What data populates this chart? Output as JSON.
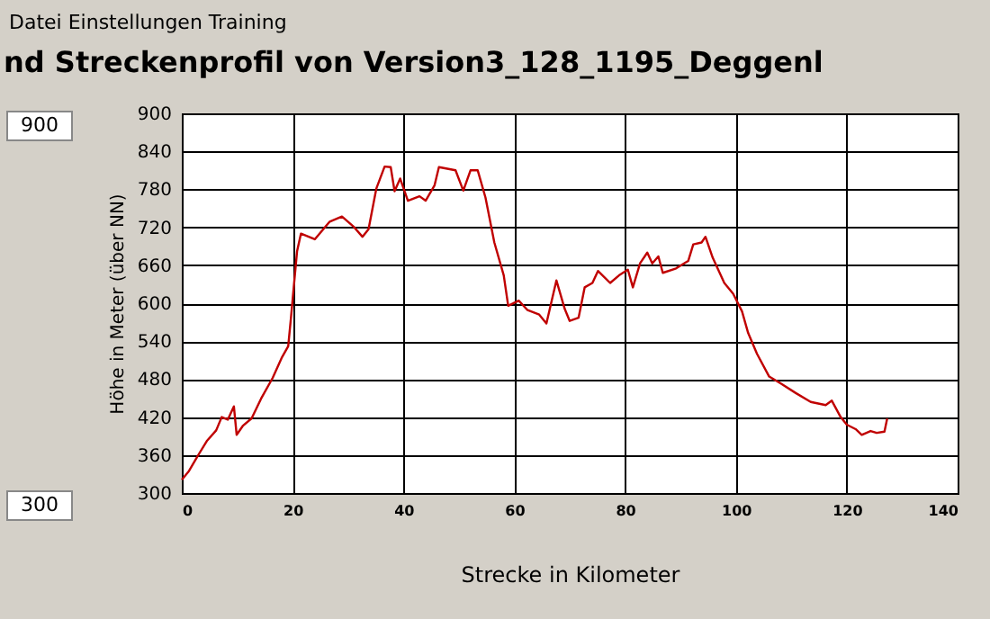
{
  "chart_data": {
    "type": "line",
    "title": "nd Streckenprofil von Version3_128_1195_Deggenl",
    "xlabel": "Strecke in Kilometer",
    "ylabel": "Höhe in Meter (über NN)",
    "annotations": [
      "Datei  Einstellungen  Training",
      "900",
      "300"
    ],
    "xlim": [
      0,
      140
    ],
    "xticks": [
      0,
      20,
      40,
      60,
      80,
      100,
      120,
      140
    ],
    "ylim": [
      300,
      900
    ],
    "yticks": [
      300,
      360,
      420,
      480,
      540,
      600,
      660,
      720,
      780,
      840,
      900
    ],
    "grid": true,
    "marker": "none",
    "line_style": "solid",
    "series": [
      {
        "color": "#c00000",
        "x": [
          0,
          1.3,
          2.9,
          4.5,
          6.2,
          7.2,
          8.3,
          9.4,
          9.9,
          11.0,
          12.6,
          14.3,
          16.4,
          18.1,
          19.2,
          19.7,
          20.2,
          20.8,
          21.5,
          24.0,
          26.7,
          28.9,
          31.0,
          32.6,
          33.7,
          35.1,
          36.6,
          37.7,
          38.4,
          39.4,
          40.8,
          42.9,
          44.0,
          45.6,
          46.4,
          49.4,
          50.8,
          52.1,
          53.4,
          54.8,
          56.4,
          58.1,
          58.9,
          60.8,
          62.4,
          64.5,
          65.8,
          67.6,
          69.1,
          70.0,
          71.6,
          72.7,
          74.1,
          75.1,
          77.3,
          78.9,
          80.5,
          81.4,
          82.7,
          84.0,
          84.9,
          86.0,
          86.8,
          89.2,
          91.4,
          92.3,
          93.8,
          94.5,
          95.8,
          97.9,
          99.5,
          101.1,
          102.2,
          103.8,
          106.0,
          108.1,
          110.8,
          113.5,
          116.2,
          117.3,
          118.9,
          120.0,
          121.6,
          122.7,
          124.3,
          125.4,
          126.8,
          127.3
        ],
        "values": [
          321,
          335,
          359,
          382,
          399,
          420,
          416,
          437,
          392,
          406,
          418,
          449,
          482,
          515,
          532,
          577,
          625,
          682,
          710,
          701,
          729,
          737,
          721,
          705,
          717,
          781,
          816,
          815,
          777,
          797,
          762,
          769,
          762,
          786,
          815,
          810,
          778,
          810,
          810,
          767,
          696,
          644,
          596,
          604,
          589,
          582,
          568,
          636,
          591,
          572,
          577,
          625,
          632,
          651,
          632,
          644,
          653,
          625,
          663,
          680,
          663,
          674,
          648,
          655,
          667,
          693,
          696,
          705,
          672,
          632,
          615,
          587,
          553,
          520,
          484,
          473,
          458,
          444,
          439,
          446,
          420,
          408,
          401,
          392,
          398,
          395,
          397,
          418
        ]
      }
    ]
  }
}
